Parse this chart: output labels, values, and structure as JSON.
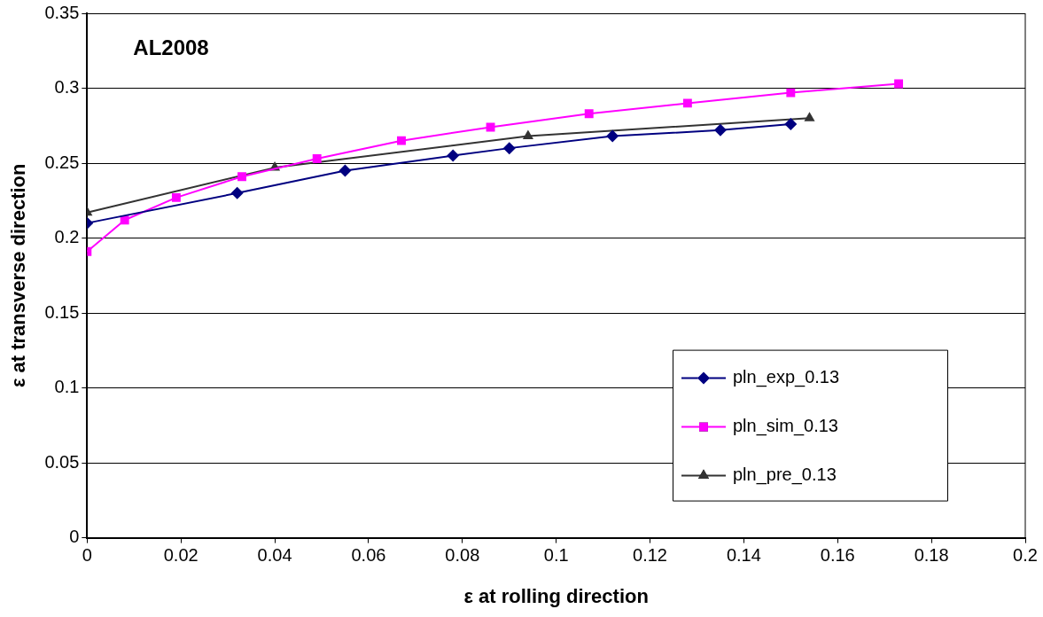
{
  "chart_data": {
    "type": "line",
    "xlabel": "ε at rolling direction",
    "ylabel": "ε at transverse direction",
    "xlim": [
      0,
      0.2
    ],
    "xticks": [
      0,
      0.02,
      0.04,
      0.06,
      0.08,
      0.1,
      0.12,
      0.14,
      0.16,
      0.18,
      0.2
    ],
    "ylim": [
      0,
      0.35
    ],
    "yticks": [
      0,
      0.05,
      0.1,
      0.15,
      0.2,
      0.25,
      0.3,
      0.35
    ],
    "grid": "y",
    "legend": "bottom right",
    "annotations": [
      "AL2008"
    ],
    "series": [
      {
        "name": "pln_exp_0.13",
        "color": "#000080",
        "marker": "diamond",
        "x": [
          0,
          0.032,
          0.055,
          0.078,
          0.09,
          0.112,
          0.135,
          0.15
        ],
        "values": [
          0.21,
          0.23,
          0.245,
          0.255,
          0.26,
          0.268,
          0.272,
          0.276
        ]
      },
      {
        "name": "pln_sim_0.13",
        "color": "#ff00ff",
        "marker": "square",
        "x": [
          0,
          0.008,
          0.019,
          0.033,
          0.049,
          0.067,
          0.086,
          0.107,
          0.128,
          0.15,
          0.173
        ],
        "values": [
          0.191,
          0.212,
          0.227,
          0.241,
          0.253,
          0.265,
          0.274,
          0.283,
          0.29,
          0.297,
          0.303
        ]
      },
      {
        "name": "pln_pre_0.13",
        "color": "#333333",
        "marker": "triangle",
        "x": [
          0,
          0.04,
          0.094,
          0.154
        ],
        "values": [
          0.217,
          0.247,
          0.268,
          0.28
        ]
      }
    ]
  }
}
